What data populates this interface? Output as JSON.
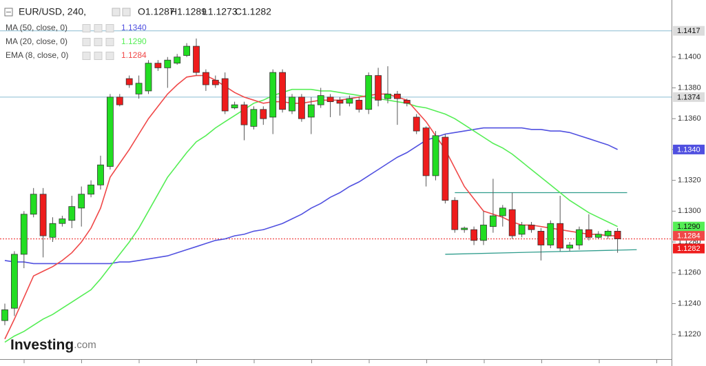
{
  "header": {
    "symbol": "EUR/USD, 240,",
    "ohlc": [
      "O1.1287",
      "H1.1289",
      "L1.1273",
      "C1.1282"
    ]
  },
  "logo": {
    "name": "Investing",
    "suffix": ".com"
  },
  "chart_data": {
    "type": "candlestick",
    "up_color": "#22dd22",
    "down_color": "#ee1c1c",
    "ylim": [
      1.1204,
      1.1437
    ],
    "yticks": [
      {
        "value": 1.122,
        "label": "1.1220"
      },
      {
        "value": 1.124,
        "label": "1.1240"
      },
      {
        "value": 1.126,
        "label": "1.1260"
      },
      {
        "value": 1.128,
        "label": "1.1280"
      },
      {
        "value": 1.13,
        "label": "1.1300"
      },
      {
        "value": 1.132,
        "label": "1.1320"
      },
      {
        "value": 1.134,
        "label": "1.1340"
      },
      {
        "value": 1.136,
        "label": "1.1360"
      },
      {
        "value": 1.138,
        "label": "1.1380"
      },
      {
        "value": 1.14,
        "label": "1.1400"
      }
    ],
    "grid": false,
    "open": [
      1.1229,
      1.1237,
      1.1272,
      1.1298,
      1.1311,
      1.1283,
      1.1292,
      1.1294,
      1.1302,
      1.1311,
      1.1317,
      1.1329,
      1.1374,
      1.1386,
      1.1376,
      1.1378,
      1.1396,
      1.1393,
      1.1396,
      1.1401,
      1.1407,
      1.139,
      1.1385,
      1.1386,
      1.1367,
      1.1369,
      1.1355,
      1.1366,
      1.1361,
      1.139,
      1.1365,
      1.1374,
      1.1361,
      1.1369,
      1.1374,
      1.1372,
      1.137,
      1.1372,
      1.1366,
      1.1388,
      1.1373,
      1.1376,
      1.1372,
      1.1361,
      1.1354,
      1.1323,
      1.1348,
      1.1307,
      1.1288,
      1.1288,
      1.1281,
      1.129,
      1.1297,
      1.1301,
      1.1285,
      1.1291,
      1.1287,
      1.1278,
      1.1292,
      1.1276,
      1.1278,
      1.1288,
      1.1283,
      1.1284,
      1.1287
    ],
    "high": [
      1.124,
      1.1274,
      1.13,
      1.1315,
      1.1315,
      1.1296,
      1.1297,
      1.131,
      1.1316,
      1.132,
      1.1336,
      1.1376,
      1.1376,
      1.1388,
      1.1388,
      1.1398,
      1.1398,
      1.14,
      1.1402,
      1.1409,
      1.1412,
      1.1392,
      1.1388,
      1.139,
      1.1371,
      1.1371,
      1.1368,
      1.1368,
      1.1392,
      1.1392,
      1.1376,
      1.1376,
      1.1374,
      1.138,
      1.1376,
      1.1374,
      1.1375,
      1.1374,
      1.139,
      1.1393,
      1.1394,
      1.1378,
      1.1373,
      1.1363,
      1.1355,
      1.1352,
      1.135,
      1.1309,
      1.129,
      1.129,
      1.13,
      1.1321,
      1.1304,
      1.1312,
      1.1293,
      1.1293,
      1.1289,
      1.1294,
      1.131,
      1.128,
      1.129,
      1.1298,
      1.1287,
      1.1288,
      1.1289
    ],
    "low": [
      1.1226,
      1.1232,
      1.1263,
      1.1296,
      1.127,
      1.128,
      1.129,
      1.1289,
      1.129,
      1.1309,
      1.1314,
      1.1327,
      1.1368,
      1.138,
      1.1373,
      1.1376,
      1.1391,
      1.138,
      1.1395,
      1.14,
      1.1388,
      1.1378,
      1.138,
      1.1363,
      1.1366,
      1.1346,
      1.1353,
      1.1356,
      1.135,
      1.1364,
      1.1363,
      1.1358,
      1.135,
      1.1367,
      1.1361,
      1.1362,
      1.1368,
      1.1364,
      1.1363,
      1.1368,
      1.137,
      1.1356,
      1.1368,
      1.135,
      1.1316,
      1.132,
      1.1305,
      1.1286,
      1.1286,
      1.1278,
      1.1278,
      1.1286,
      1.129,
      1.1282,
      1.1283,
      1.1286,
      1.1268,
      1.1276,
      1.1274,
      1.1274,
      1.1275,
      1.1281,
      1.1282,
      1.1282,
      1.1273
    ],
    "close": [
      1.1236,
      1.1272,
      1.1298,
      1.1311,
      1.1284,
      1.1292,
      1.1295,
      1.1303,
      1.1311,
      1.1317,
      1.133,
      1.1374,
      1.1369,
      1.1382,
      1.1383,
      1.1396,
      1.1393,
      1.1398,
      1.14,
      1.1407,
      1.139,
      1.1382,
      1.1382,
      1.1365,
      1.1369,
      1.1356,
      1.1366,
      1.136,
      1.139,
      1.1366,
      1.1374,
      1.136,
      1.1369,
      1.1375,
      1.1371,
      1.137,
      1.1373,
      1.1366,
      1.1388,
      1.1372,
      1.1376,
      1.1373,
      1.137,
      1.1352,
      1.1323,
      1.1349,
      1.1307,
      1.1288,
      1.1289,
      1.1281,
      1.1291,
      1.1297,
      1.1302,
      1.1284,
      1.1291,
      1.1288,
      1.1278,
      1.1292,
      1.1276,
      1.1278,
      1.1288,
      1.1283,
      1.1285,
      1.1287,
      1.1282
    ],
    "last_price": {
      "value": 1.1282,
      "label": "1.1282",
      "color": "#ee1c1c"
    },
    "series": [
      {
        "name": "MA (50, close, 0)",
        "color": "#5050e0",
        "last_label": "1.1340",
        "values": [
          1.1268,
          1.1267,
          1.1267,
          1.1266,
          1.1266,
          1.1266,
          1.1266,
          1.1266,
          1.1266,
          1.1266,
          1.1266,
          1.1266,
          1.1267,
          1.1267,
          1.1268,
          1.1269,
          1.127,
          1.1271,
          1.1273,
          1.1275,
          1.1277,
          1.1279,
          1.1281,
          1.1282,
          1.1284,
          1.1285,
          1.1287,
          1.1288,
          1.129,
          1.1292,
          1.1295,
          1.1298,
          1.1302,
          1.1305,
          1.1309,
          1.1312,
          1.1316,
          1.1319,
          1.1323,
          1.1327,
          1.1331,
          1.1335,
          1.1338,
          1.1342,
          1.1346,
          1.1348,
          1.135,
          1.1351,
          1.1352,
          1.1353,
          1.1354,
          1.1354,
          1.1354,
          1.1354,
          1.1354,
          1.1353,
          1.1353,
          1.1352,
          1.1352,
          1.1351,
          1.1349,
          1.1347,
          1.1345,
          1.1343,
          1.134
        ]
      },
      {
        "name": "MA (20, close, 0)",
        "color": "#55ee55",
        "last_label": "1.1290",
        "values": [
          1.1215,
          1.1219,
          1.1222,
          1.1226,
          1.123,
          1.1233,
          1.1237,
          1.1241,
          1.1245,
          1.1249,
          1.1256,
          1.1264,
          1.1272,
          1.128,
          1.1289,
          1.13,
          1.1311,
          1.1322,
          1.133,
          1.1338,
          1.1345,
          1.1349,
          1.1354,
          1.1358,
          1.1362,
          1.1366,
          1.137,
          1.1372,
          1.1375,
          1.1377,
          1.1379,
          1.1379,
          1.1379,
          1.1378,
          1.1378,
          1.1377,
          1.1376,
          1.1375,
          1.1374,
          1.1373,
          1.1372,
          1.1371,
          1.137,
          1.1368,
          1.1367,
          1.1365,
          1.1363,
          1.136,
          1.1356,
          1.1352,
          1.1348,
          1.1344,
          1.1341,
          1.1337,
          1.1332,
          1.1327,
          1.1322,
          1.1317,
          1.1312,
          1.1307,
          1.1303,
          1.1299,
          1.1296,
          1.1293,
          1.129
        ]
      },
      {
        "name": "EMA (8, close, 0)",
        "color": "#f04848",
        "last_label": "1.1284",
        "values": [
          1.1217,
          1.123,
          1.1244,
          1.1258,
          1.1261,
          1.1264,
          1.1268,
          1.1273,
          1.128,
          1.1289,
          1.1302,
          1.1322,
          1.1331,
          1.134,
          1.135,
          1.136,
          1.1368,
          1.1376,
          1.1382,
          1.1387,
          1.1388,
          1.1388,
          1.1385,
          1.1381,
          1.1377,
          1.1374,
          1.1372,
          1.137,
          1.1371,
          1.1371,
          1.137,
          1.137,
          1.1371,
          1.1372,
          1.1372,
          1.1372,
          1.1373,
          1.1374,
          1.1375,
          1.1376,
          1.1376,
          1.1374,
          1.1372,
          1.1365,
          1.1358,
          1.1349,
          1.134,
          1.1328,
          1.1316,
          1.1308,
          1.13,
          1.1298,
          1.1296,
          1.1293,
          1.1291,
          1.1291,
          1.129,
          1.1289,
          1.1288,
          1.1287,
          1.1286,
          1.1285,
          1.1285,
          1.1284,
          1.1284
        ]
      }
    ],
    "hlines": [
      {
        "value": 1.1417,
        "label": "1.1417",
        "color": "#88bcd0"
      },
      {
        "value": 1.1374,
        "label": "1.1374",
        "color": "#88bcd0"
      }
    ],
    "trend_lines": [
      {
        "x": [
          47,
          65
        ],
        "values": [
          1.1312,
          1.1312
        ],
        "color": "#2e9c8c"
      },
      {
        "x": [
          46,
          66
        ],
        "values": [
          1.1272,
          1.1275
        ],
        "color": "#2e9c8c"
      }
    ]
  }
}
